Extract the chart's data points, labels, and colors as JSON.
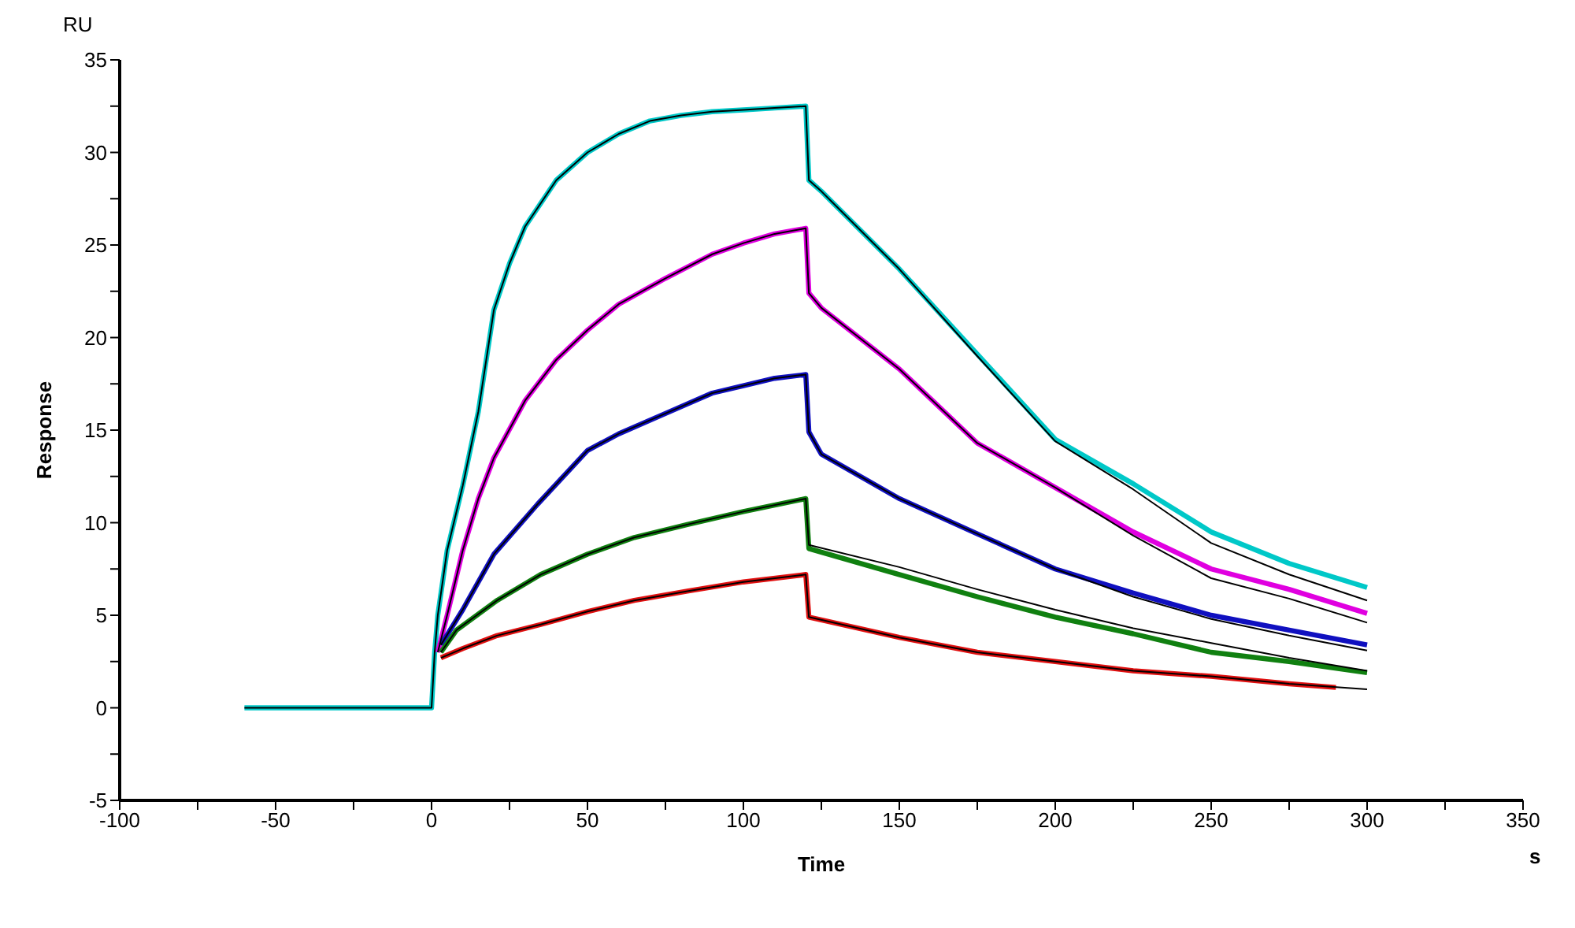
{
  "chart_data": {
    "type": "line",
    "xlabel": "Time",
    "ylabel": "Response",
    "annotations": [
      "RU",
      "s"
    ],
    "xlim": [
      -100,
      350
    ],
    "xticks": [
      -100,
      {
        "value": -75,
        "label": null
      },
      -50,
      {
        "value": -25,
        "label": null
      },
      0,
      {
        "value": 25,
        "label": null
      },
      50,
      {
        "value": 75,
        "label": null
      },
      100,
      {
        "value": 125,
        "label": null
      },
      150,
      {
        "value": 175,
        "label": null
      },
      200,
      {
        "value": 225,
        "label": null
      },
      250,
      {
        "value": 275,
        "label": null
      },
      300,
      {
        "value": 325,
        "label": null
      },
      350
    ],
    "ylim": [
      -5,
      35
    ],
    "yticks": [
      -5,
      {
        "value": -2.5,
        "label": null
      },
      0,
      {
        "value": 2.5,
        "label": null
      },
      5,
      {
        "value": 7.5,
        "label": null
      },
      10,
      {
        "value": 12.5,
        "label": null
      },
      15,
      {
        "value": 17.5,
        "label": null
      },
      20,
      {
        "value": 22.5,
        "label": null
      },
      25,
      {
        "value": 27.5,
        "label": null
      },
      30,
      {
        "value": 32.5,
        "label": null
      },
      35
    ],
    "grid": false,
    "marker": "none",
    "line_style": "solid",
    "series": [
      {
        "color": "#00c8c8",
        "x": [
          -60,
          -30,
          0,
          1,
          2,
          5,
          10,
          15,
          20,
          25,
          30,
          40,
          50,
          60,
          70,
          80,
          90,
          100,
          110,
          120,
          121,
          125,
          150,
          175,
          200,
          225,
          250,
          275,
          300
        ],
        "values": [
          0,
          0,
          0,
          3,
          5,
          8.5,
          12,
          16,
          21.5,
          24,
          26,
          28.5,
          30,
          31,
          31.7,
          32,
          32.2,
          32.3,
          32.4,
          32.5,
          28.5,
          27.9,
          23.7,
          19.1,
          14.5,
          12.1,
          9.5,
          7.8,
          6.5
        ]
      },
      {
        "color": "#e000e0",
        "x": [
          2,
          5,
          10,
          15,
          20,
          30,
          40,
          50,
          60,
          75,
          90,
          100,
          110,
          120,
          121,
          125,
          150,
          175,
          200,
          225,
          250,
          275,
          300
        ],
        "values": [
          3,
          5,
          8.5,
          11.3,
          13.5,
          16.6,
          18.8,
          20.4,
          21.8,
          23.2,
          24.5,
          25.1,
          25.6,
          25.9,
          22.4,
          21.6,
          18.3,
          14.3,
          11.9,
          9.5,
          7.5,
          6.4,
          5.1
        ]
      },
      {
        "color": "#1010c0",
        "x": [
          3,
          10,
          20,
          34,
          50,
          60,
          75,
          90,
          100,
          110,
          120,
          121,
          125,
          150,
          175,
          200,
          225,
          250,
          275,
          300
        ],
        "values": [
          3.4,
          5.3,
          8.3,
          11,
          13.9,
          14.8,
          15.9,
          17,
          17.4,
          17.8,
          18,
          14.9,
          13.7,
          11.3,
          9.4,
          7.5,
          6.2,
          5,
          4.2,
          3.4
        ]
      },
      {
        "color": "#108010",
        "x": [
          3,
          8,
          21,
          35,
          50,
          65,
          82,
          100,
          120,
          121,
          150,
          175,
          200,
          225,
          250,
          275,
          300
        ],
        "values": [
          3,
          4.2,
          5.8,
          7.2,
          8.3,
          9.2,
          9.9,
          10.6,
          11.3,
          8.6,
          7.2,
          6,
          4.9,
          4,
          3,
          2.5,
          1.9
        ]
      },
      {
        "color": "#e01010",
        "x": [
          3,
          10,
          21,
          35,
          50,
          65,
          82,
          100,
          120,
          121,
          150,
          175,
          200,
          225,
          250,
          275,
          290
        ],
        "values": [
          2.7,
          3.2,
          3.9,
          4.5,
          5.2,
          5.8,
          6.3,
          6.8,
          7.2,
          4.9,
          3.8,
          3,
          2.5,
          2,
          1.7,
          1.3,
          1.1
        ]
      },
      {
        "color": "#000000",
        "x": [
          -60,
          -30,
          0,
          1,
          2,
          5,
          10,
          15,
          20,
          25,
          30,
          40,
          50,
          60,
          70,
          80,
          90,
          100,
          110,
          120,
          121,
          125,
          150,
          175,
          200,
          225,
          250,
          275,
          300
        ],
        "values": [
          0,
          0,
          0,
          3,
          5,
          8.5,
          12,
          16,
          21.5,
          24,
          26,
          28.5,
          30,
          31,
          31.7,
          32,
          32.2,
          32.3,
          32.4,
          32.5,
          28.5,
          27.9,
          23.7,
          19,
          14.4,
          11.8,
          8.9,
          7.2,
          5.8
        ]
      },
      {
        "color": "#000000",
        "x": [
          2,
          5,
          10,
          15,
          20,
          30,
          40,
          50,
          60,
          75,
          90,
          100,
          110,
          120,
          121,
          125,
          150,
          175,
          200,
          225,
          250,
          275,
          300
        ],
        "values": [
          3,
          5,
          8.5,
          11.3,
          13.5,
          16.6,
          18.8,
          20.4,
          21.8,
          23.2,
          24.5,
          25.1,
          25.6,
          25.9,
          22.4,
          21.6,
          18.3,
          14.3,
          11.9,
          9.3,
          7,
          5.9,
          4.6
        ]
      },
      {
        "color": "#000000",
        "x": [
          3,
          10,
          20,
          34,
          50,
          60,
          75,
          90,
          100,
          110,
          120,
          121,
          125,
          150,
          175,
          200,
          225,
          250,
          275,
          300
        ],
        "values": [
          3.4,
          5.3,
          8.3,
          11,
          13.9,
          14.8,
          15.9,
          17,
          17.4,
          17.8,
          18,
          14.9,
          13.7,
          11.3,
          9.4,
          7.5,
          6,
          4.8,
          3.9,
          3.1
        ]
      },
      {
        "color": "#000000",
        "x": [
          3,
          8,
          21,
          35,
          50,
          65,
          82,
          100,
          120,
          121,
          150,
          175,
          200,
          225,
          250,
          275,
          300
        ],
        "values": [
          3,
          4.2,
          5.8,
          7.2,
          8.3,
          9.2,
          9.9,
          10.6,
          11.3,
          8.8,
          7.6,
          6.4,
          5.3,
          4.3,
          3.5,
          2.7,
          2
        ]
      },
      {
        "color": "#000000",
        "x": [
          3,
          10,
          21,
          35,
          50,
          65,
          82,
          100,
          120,
          121,
          150,
          175,
          200,
          225,
          250,
          275,
          300
        ],
        "values": [
          2.7,
          3.2,
          3.9,
          4.5,
          5.2,
          5.8,
          6.3,
          6.8,
          7.2,
          4.9,
          3.8,
          3,
          2.5,
          2,
          1.7,
          1.3,
          1
        ]
      }
    ]
  }
}
